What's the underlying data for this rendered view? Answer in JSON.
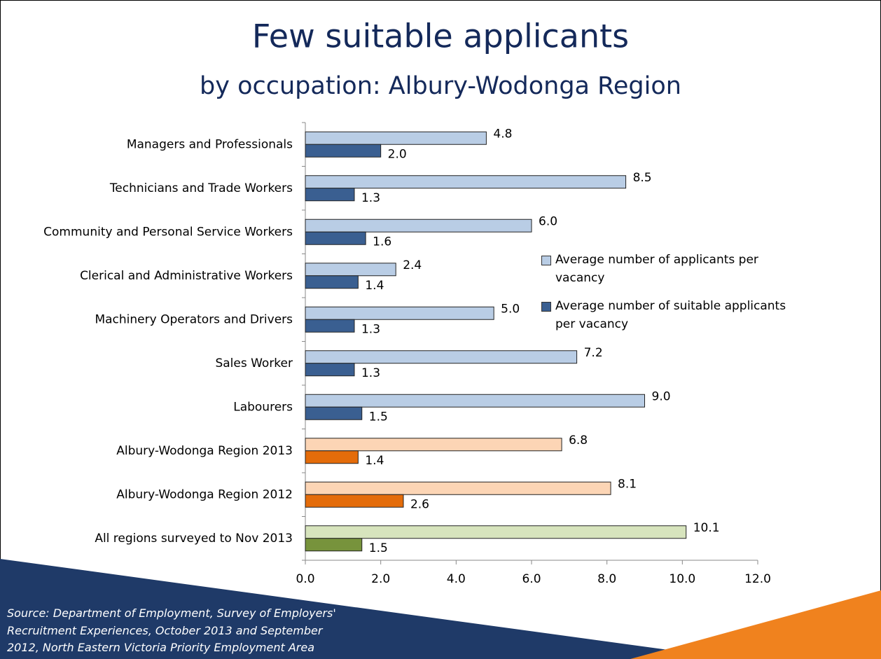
{
  "chart_data": {
    "type": "hbar",
    "title": "Few suitable applicants",
    "subtitle": "by occupation: Albury-Wodonga Region",
    "categories": [
      "Managers and Professionals",
      "Technicians and Trade Workers",
      "Community and Personal Service Workers",
      "Clerical and Administrative Workers",
      "Machinery Operators and Drivers",
      "Sales Worker",
      "Labourers",
      "Albury-Wodonga Region 2013",
      "Albury-Wodonga Region 2012",
      "All regions surveyed to Nov 2013"
    ],
    "series": [
      {
        "name": "Average number of applicants per vacancy",
        "color": "#b9cde5",
        "colors": [
          "#b9cde5",
          "#b9cde5",
          "#b9cde5",
          "#b9cde5",
          "#b9cde5",
          "#b9cde5",
          "#b9cde5",
          "#fcd5b5",
          "#fcd5b5",
          "#d7e4bd"
        ],
        "values": [
          4.8,
          8.5,
          6.0,
          2.4,
          5.0,
          7.2,
          9.0,
          6.8,
          8.1,
          10.1
        ],
        "value_labels": [
          "4.8",
          "8.5",
          "6.0",
          "2.4",
          "5.0",
          "7.2",
          "9.0",
          "6.8",
          "8.1",
          "10.1"
        ]
      },
      {
        "name": "Average number of suitable applicants per vacancy",
        "color": "#3a5f91",
        "colors": [
          "#3a5f91",
          "#3a5f91",
          "#3a5f91",
          "#3a5f91",
          "#3a5f91",
          "#3a5f91",
          "#3a5f91",
          "#e46c0a",
          "#e46c0a",
          "#77933c"
        ],
        "values": [
          2.0,
          1.3,
          1.6,
          1.4,
          1.3,
          1.3,
          1.5,
          1.4,
          2.6,
          1.5
        ],
        "value_labels": [
          "2.0",
          "1.3",
          "1.6",
          "1.4",
          "1.3",
          "1.3",
          "1.5",
          "1.4",
          "2.6",
          "1.5"
        ]
      }
    ],
    "xlim": [
      0,
      12
    ],
    "xticks": [
      {
        "value": 0,
        "label": "0.0"
      },
      {
        "value": 2,
        "label": "2.0"
      },
      {
        "value": 4,
        "label": "4.0"
      },
      {
        "value": 6,
        "label": "6.0"
      },
      {
        "value": 8,
        "label": "8.0"
      },
      {
        "value": 10,
        "label": "10.0"
      },
      {
        "value": 12,
        "label": "12.0"
      }
    ],
    "source": [
      "Source: Department of Employment, Survey of Employers'",
      "Recruitment Experiences, October 2013 and September",
      "2012, North Eastern Victoria Priority Employment Area"
    ]
  }
}
